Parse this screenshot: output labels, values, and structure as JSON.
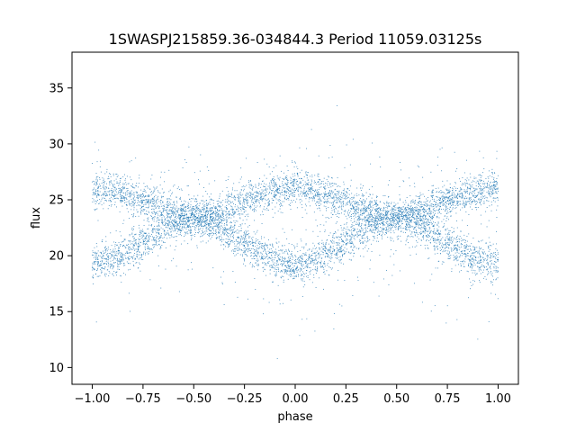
{
  "chart_data": {
    "type": "scatter",
    "title": "1SWASPJ215859.36-034844.3 Period 11059.03125s",
    "xlabel": "phase",
    "ylabel": "flux",
    "xlim": [
      -1.1,
      1.1
    ],
    "ylim": [
      8.5,
      38.2
    ],
    "xticks": [
      -1.0,
      -0.75,
      -0.5,
      -0.25,
      0.0,
      0.25,
      0.5,
      0.75,
      1.0
    ],
    "xtick_labels": [
      "−1.00",
      "−0.75",
      "−0.50",
      "−0.25",
      "0.00",
      "0.25",
      "0.50",
      "0.75",
      "1.00"
    ],
    "yticks": [
      10,
      15,
      20,
      25,
      30,
      35
    ],
    "ytick_labels": [
      "10",
      "15",
      "20",
      "25",
      "30",
      "35"
    ],
    "grid": false,
    "legend": "none",
    "point_color": "#1f77b4",
    "series": [
      {
        "band": "upper",
        "points": [
          [
            -1.0,
            26.0
          ],
          [
            -0.875,
            25.7
          ],
          [
            -0.75,
            24.9
          ],
          [
            -0.625,
            24.0
          ],
          [
            -0.5,
            23.4
          ],
          [
            -0.375,
            23.9
          ],
          [
            -0.25,
            24.9
          ],
          [
            -0.125,
            25.8
          ],
          [
            0.0,
            26.1
          ],
          [
            0.125,
            25.7
          ],
          [
            0.25,
            24.8
          ],
          [
            0.375,
            23.9
          ],
          [
            0.5,
            23.4
          ],
          [
            0.625,
            24.0
          ],
          [
            0.75,
            24.9
          ],
          [
            0.875,
            25.7
          ],
          [
            1.0,
            26.0
          ]
        ]
      },
      {
        "band": "lower",
        "points": [
          [
            -1.0,
            19.2
          ],
          [
            -0.875,
            19.8
          ],
          [
            -0.75,
            21.2
          ],
          [
            -0.625,
            22.7
          ],
          [
            -0.5,
            23.4
          ],
          [
            -0.375,
            22.6
          ],
          [
            -0.25,
            21.1
          ],
          [
            -0.125,
            19.7
          ],
          [
            0.0,
            19.1
          ],
          [
            0.125,
            19.8
          ],
          [
            0.25,
            21.3
          ],
          [
            0.375,
            22.8
          ],
          [
            0.5,
            23.4
          ],
          [
            0.625,
            22.7
          ],
          [
            0.75,
            21.2
          ],
          [
            0.875,
            19.8
          ],
          [
            1.0,
            19.2
          ]
        ]
      }
    ],
    "band_spread": 1.1,
    "outlier_range": [
      9.5,
      36.8
    ]
  }
}
